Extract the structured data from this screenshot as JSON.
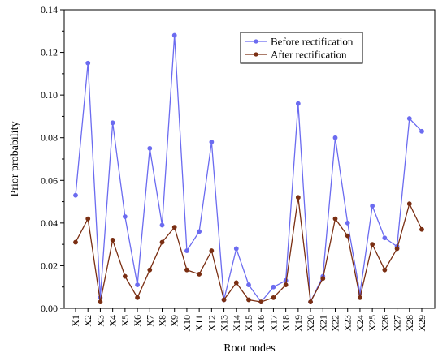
{
  "chart_data": {
    "type": "line",
    "title": "",
    "xlabel": "Root nodes",
    "ylabel": "Prior probability",
    "ylim": [
      0,
      0.14
    ],
    "yticks": [
      "0.00",
      "0.02",
      "0.04",
      "0.06",
      "0.08",
      "0.10",
      "0.12",
      "0.14"
    ],
    "grid": false,
    "legend_position": "top-right",
    "categories": [
      "X1",
      "X2",
      "X3",
      "X4",
      "X5",
      "X6",
      "X7",
      "X8",
      "X9",
      "X10",
      "X11",
      "X12",
      "X13",
      "X14",
      "X15",
      "X16",
      "X17",
      "X18",
      "X19",
      "X20",
      "X21",
      "X22",
      "X23",
      "X24",
      "X25",
      "X26",
      "X27",
      "X28",
      "X29"
    ],
    "series": [
      {
        "name": "Before rectification",
        "color": "#6b6bf0",
        "marker": "circle",
        "values": [
          0.053,
          0.115,
          0.005,
          0.087,
          0.043,
          0.011,
          0.075,
          0.039,
          0.128,
          0.027,
          0.036,
          0.078,
          0.004,
          0.028,
          0.011,
          0.003,
          0.01,
          0.013,
          0.096,
          0.003,
          0.015,
          0.08,
          0.04,
          0.007,
          0.048,
          0.033,
          0.029,
          0.089,
          0.083
        ]
      },
      {
        "name": "After rectification",
        "color": "#7a2e12",
        "marker": "circle",
        "values": [
          0.031,
          0.042,
          0.003,
          0.032,
          0.015,
          0.005,
          0.018,
          0.031,
          0.038,
          0.018,
          0.016,
          0.027,
          0.004,
          0.012,
          0.004,
          0.003,
          0.005,
          0.011,
          0.052,
          0.003,
          0.014,
          0.042,
          0.034,
          0.005,
          0.03,
          0.018,
          0.028,
          0.049,
          0.037
        ]
      }
    ]
  }
}
